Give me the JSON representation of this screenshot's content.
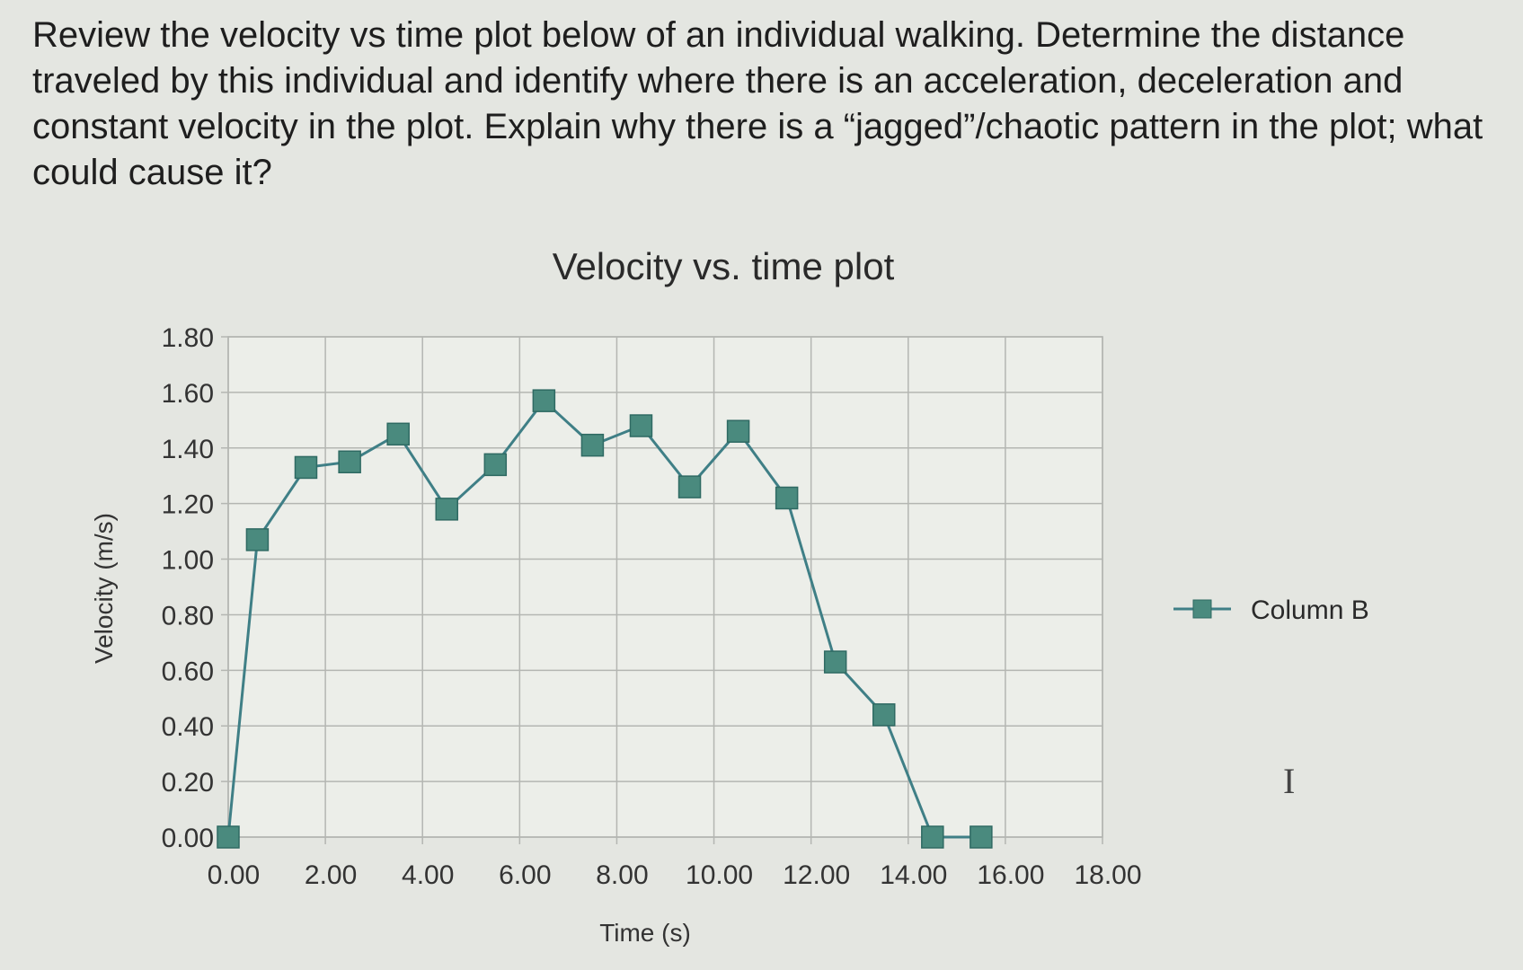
{
  "question": "Review the velocity vs time plot below of an individual walking. Determine the distance traveled by this individual and identify where there is an acceleration, deceleration and constant velocity in the plot. Explain why there is a “jagged”/chaotic pattern in the plot; what could cause it?",
  "chart_data": {
    "type": "line",
    "title": "Velocity vs. time plot",
    "xlabel": "Time (s)",
    "ylabel": "Velocity (m/s)",
    "xlim": [
      0,
      18
    ],
    "ylim": [
      0,
      1.8
    ],
    "xticks": [
      "0.00",
      "2.00",
      "4.00",
      "6.00",
      "8.00",
      "10.00",
      "12.00",
      "14.00",
      "16.00",
      "18.00"
    ],
    "yticks": [
      "0.00",
      "0.20",
      "0.40",
      "0.60",
      "0.80",
      "1.00",
      "1.20",
      "1.40",
      "1.60",
      "1.80"
    ],
    "grid": true,
    "legend_position": "right",
    "series": [
      {
        "name": "Column B",
        "color": "#3f7f86",
        "marker_color": "#4a8a7e",
        "x": [
          0,
          0.6,
          1.6,
          2.5,
          3.5,
          4.5,
          5.5,
          6.5,
          7.5,
          8.5,
          9.5,
          10.5,
          11.5,
          12.5,
          13.5,
          14.5,
          15.5
        ],
        "y": [
          0.0,
          1.07,
          1.33,
          1.35,
          1.45,
          1.18,
          1.34,
          1.57,
          1.41,
          1.48,
          1.26,
          1.46,
          1.22,
          0.63,
          0.44,
          0.0,
          0.0
        ]
      }
    ]
  }
}
